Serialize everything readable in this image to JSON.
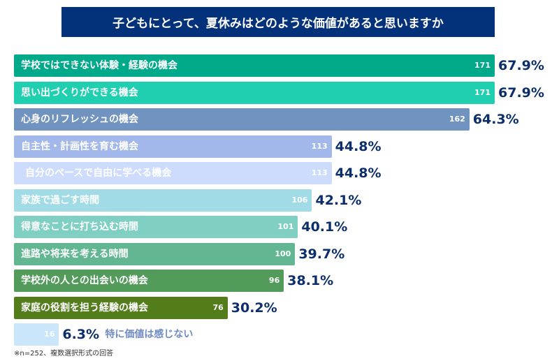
{
  "chart_data": {
    "type": "bar",
    "orientation": "horizontal",
    "title": "子どもにとって、夏休みはどのような価値があると思いますか",
    "categories": [
      "学校ではできない体験・経験の機会",
      "思い出づくりができる機会",
      "心身のリフレッシュの機会",
      "自主性・計画性を育む機会",
      "自分のペースで自由に学べる機会",
      "家族で過ごす時間",
      "得意なことに打ち込む時間",
      "進路や将来を考える時間",
      "学校外の人との出会いの機会",
      "家庭の役割を担う経験の機会",
      "特に価値は感じない"
    ],
    "values": [
      171,
      171,
      162,
      113,
      113,
      106,
      101,
      100,
      96,
      76,
      16
    ],
    "percents": [
      "67.9%",
      "67.9%",
      "64.3%",
      "44.8%",
      "44.8%",
      "42.1%",
      "40.1%",
      "39.7%",
      "38.1%",
      "30.2%",
      "6.3%"
    ],
    "colors": [
      "#00a98a",
      "#20cfb0",
      "#7093c0",
      "#a3b8ea",
      "#cddcfd",
      "#a0dbe6",
      "#7fd0c3",
      "#62b792",
      "#529b5a",
      "#537d1a",
      "#c9e6fb"
    ],
    "percent_color": "#0c2f6b",
    "xlim": [
      0,
      171
    ],
    "grid": false,
    "legend": "none",
    "footnote": "※n=252、複数選択形式の回答"
  }
}
